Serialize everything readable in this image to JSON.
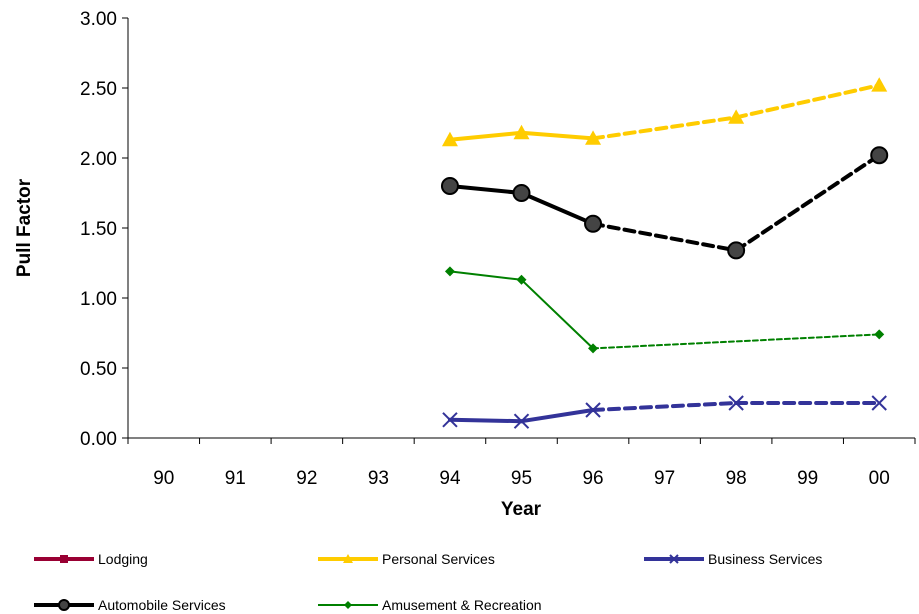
{
  "chart_data": {
    "type": "line",
    "xlabel": "Year",
    "ylabel": "Pull Factor",
    "categories": [
      "90",
      "91",
      "92",
      "93",
      "94",
      "95",
      "96",
      "97",
      "98",
      "99",
      "00"
    ],
    "ylim": [
      0,
      3
    ],
    "yticks": [
      "0.00",
      "0.50",
      "1.00",
      "1.50",
      "2.00",
      "2.50",
      "3.00"
    ],
    "grid": false,
    "legend_position": "bottom",
    "series": [
      {
        "name": "Lodging",
        "color": "#990033",
        "marker": "square",
        "values": [
          null,
          null,
          null,
          null,
          null,
          null,
          null,
          null,
          null,
          null,
          null
        ]
      },
      {
        "name": "Personal Services",
        "color": "#FFCC00",
        "marker": "triangle",
        "values": [
          null,
          null,
          null,
          null,
          2.13,
          2.18,
          2.14,
          null,
          2.29,
          null,
          2.52
        ]
      },
      {
        "name": "Business Services",
        "color": "#333399",
        "marker": "x",
        "values": [
          null,
          null,
          null,
          null,
          0.13,
          0.12,
          0.2,
          null,
          0.25,
          null,
          0.25
        ]
      },
      {
        "name": "Automobile Services",
        "color": "#000000",
        "marker": "circle",
        "values": [
          null,
          null,
          null,
          null,
          1.8,
          1.75,
          1.53,
          null,
          1.34,
          null,
          2.02
        ]
      },
      {
        "name": "Amusement & Recreation",
        "color": "#008000",
        "marker": "diamond",
        "values": [
          null,
          null,
          null,
          null,
          1.19,
          1.13,
          0.64,
          null,
          null,
          null,
          0.74
        ]
      }
    ]
  }
}
